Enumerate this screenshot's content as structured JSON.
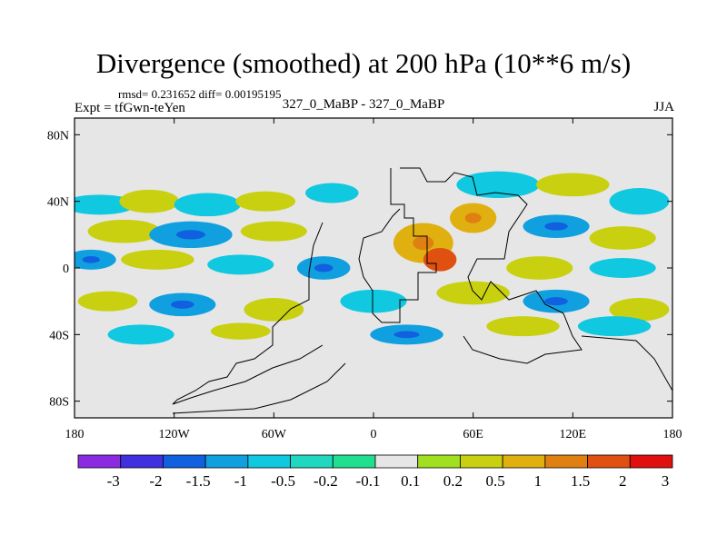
{
  "chart_data": {
    "type": "heatmap",
    "title": "Divergence (smoothed) at 200 hPa (10**6 m/s)",
    "stats_text": "rmsd= 0.231652 diff= 0.00195195",
    "left_label": "Expt = tfGwn-teYen",
    "center_label": "327_0_MaBP - 327_0_MaBP",
    "right_label": "JJA",
    "x_axis": {
      "range": [
        -180,
        180
      ],
      "ticks": [
        -180,
        -120,
        -60,
        0,
        60,
        120,
        180
      ],
      "tick_labels": [
        "180",
        "120W",
        "60W",
        "0",
        "60E",
        "120E",
        "180"
      ]
    },
    "y_axis": {
      "range": [
        -90,
        90
      ],
      "ticks": [
        80,
        40,
        0,
        -40,
        -80
      ],
      "tick_labels": [
        "80N",
        "40N",
        "0",
        "40S",
        "80S"
      ]
    },
    "colorbar": {
      "colors": [
        "#8a2be2",
        "#4030e0",
        "#1060e0",
        "#10a0e0",
        "#10c8e0",
        "#20d8c0",
        "#20e090",
        "#e6e6e6",
        "#a0e020",
        "#c8d010",
        "#e0b010",
        "#e08010",
        "#e05010",
        "#e01010"
      ],
      "labels": [
        "-3",
        "-2",
        "-1.5",
        "-1",
        "-0.5",
        "-0.2",
        "-0.1",
        "0.1",
        "0.2",
        "0.5",
        "1",
        "1.5",
        "2",
        "3"
      ]
    },
    "field_blobs": [
      {
        "lon": -165,
        "lat": 38,
        "rx": 22,
        "ry": 6,
        "level": 4
      },
      {
        "lon": -135,
        "lat": 40,
        "rx": 18,
        "ry": 7,
        "level": 9
      },
      {
        "lon": -100,
        "lat": 38,
        "rx": 20,
        "ry": 7,
        "level": 4
      },
      {
        "lon": -65,
        "lat": 40,
        "rx": 18,
        "ry": 6,
        "level": 9
      },
      {
        "lon": -25,
        "lat": 45,
        "rx": 16,
        "ry": 6,
        "level": 4
      },
      {
        "lon": 75,
        "lat": 50,
        "rx": 25,
        "ry": 8,
        "level": 4
      },
      {
        "lon": 120,
        "lat": 50,
        "rx": 22,
        "ry": 7,
        "level": 9
      },
      {
        "lon": 160,
        "lat": 40,
        "rx": 18,
        "ry": 8,
        "level": 4
      },
      {
        "lon": -150,
        "lat": 22,
        "rx": 22,
        "ry": 7,
        "level": 9
      },
      {
        "lon": -110,
        "lat": 20,
        "rx": 25,
        "ry": 8,
        "level": 3
      },
      {
        "lon": -60,
        "lat": 22,
        "rx": 20,
        "ry": 6,
        "level": 9
      },
      {
        "lon": 110,
        "lat": 25,
        "rx": 20,
        "ry": 7,
        "level": 3
      },
      {
        "lon": 150,
        "lat": 18,
        "rx": 20,
        "ry": 7,
        "level": 9
      },
      {
        "lon": 30,
        "lat": 15,
        "rx": 18,
        "ry": 12,
        "level": 10
      },
      {
        "lon": 40,
        "lat": 5,
        "rx": 10,
        "ry": 7,
        "level": 12
      },
      {
        "lon": 60,
        "lat": 30,
        "rx": 14,
        "ry": 9,
        "level": 10
      },
      {
        "lon": -170,
        "lat": 5,
        "rx": 15,
        "ry": 6,
        "level": 3
      },
      {
        "lon": -130,
        "lat": 5,
        "rx": 22,
        "ry": 6,
        "level": 9
      },
      {
        "lon": -80,
        "lat": 2,
        "rx": 20,
        "ry": 6,
        "level": 4
      },
      {
        "lon": -30,
        "lat": 0,
        "rx": 16,
        "ry": 7,
        "level": 3
      },
      {
        "lon": 100,
        "lat": 0,
        "rx": 20,
        "ry": 7,
        "level": 9
      },
      {
        "lon": 150,
        "lat": 0,
        "rx": 20,
        "ry": 6,
        "level": 4
      },
      {
        "lon": -160,
        "lat": -20,
        "rx": 18,
        "ry": 6,
        "level": 9
      },
      {
        "lon": -115,
        "lat": -22,
        "rx": 20,
        "ry": 7,
        "level": 3
      },
      {
        "lon": -60,
        "lat": -25,
        "rx": 18,
        "ry": 7,
        "level": 9
      },
      {
        "lon": 0,
        "lat": -20,
        "rx": 20,
        "ry": 7,
        "level": 4
      },
      {
        "lon": 60,
        "lat": -15,
        "rx": 22,
        "ry": 7,
        "level": 9
      },
      {
        "lon": 110,
        "lat": -20,
        "rx": 20,
        "ry": 7,
        "level": 3
      },
      {
        "lon": 160,
        "lat": -25,
        "rx": 18,
        "ry": 7,
        "level": 9
      },
      {
        "lon": -140,
        "lat": -40,
        "rx": 20,
        "ry": 6,
        "level": 4
      },
      {
        "lon": -80,
        "lat": -38,
        "rx": 18,
        "ry": 5,
        "level": 9
      },
      {
        "lon": 20,
        "lat": -40,
        "rx": 22,
        "ry": 6,
        "level": 3
      },
      {
        "lon": 90,
        "lat": -35,
        "rx": 22,
        "ry": 6,
        "level": 9
      },
      {
        "lon": 145,
        "lat": -35,
        "rx": 22,
        "ry": 6,
        "level": 4
      }
    ]
  }
}
